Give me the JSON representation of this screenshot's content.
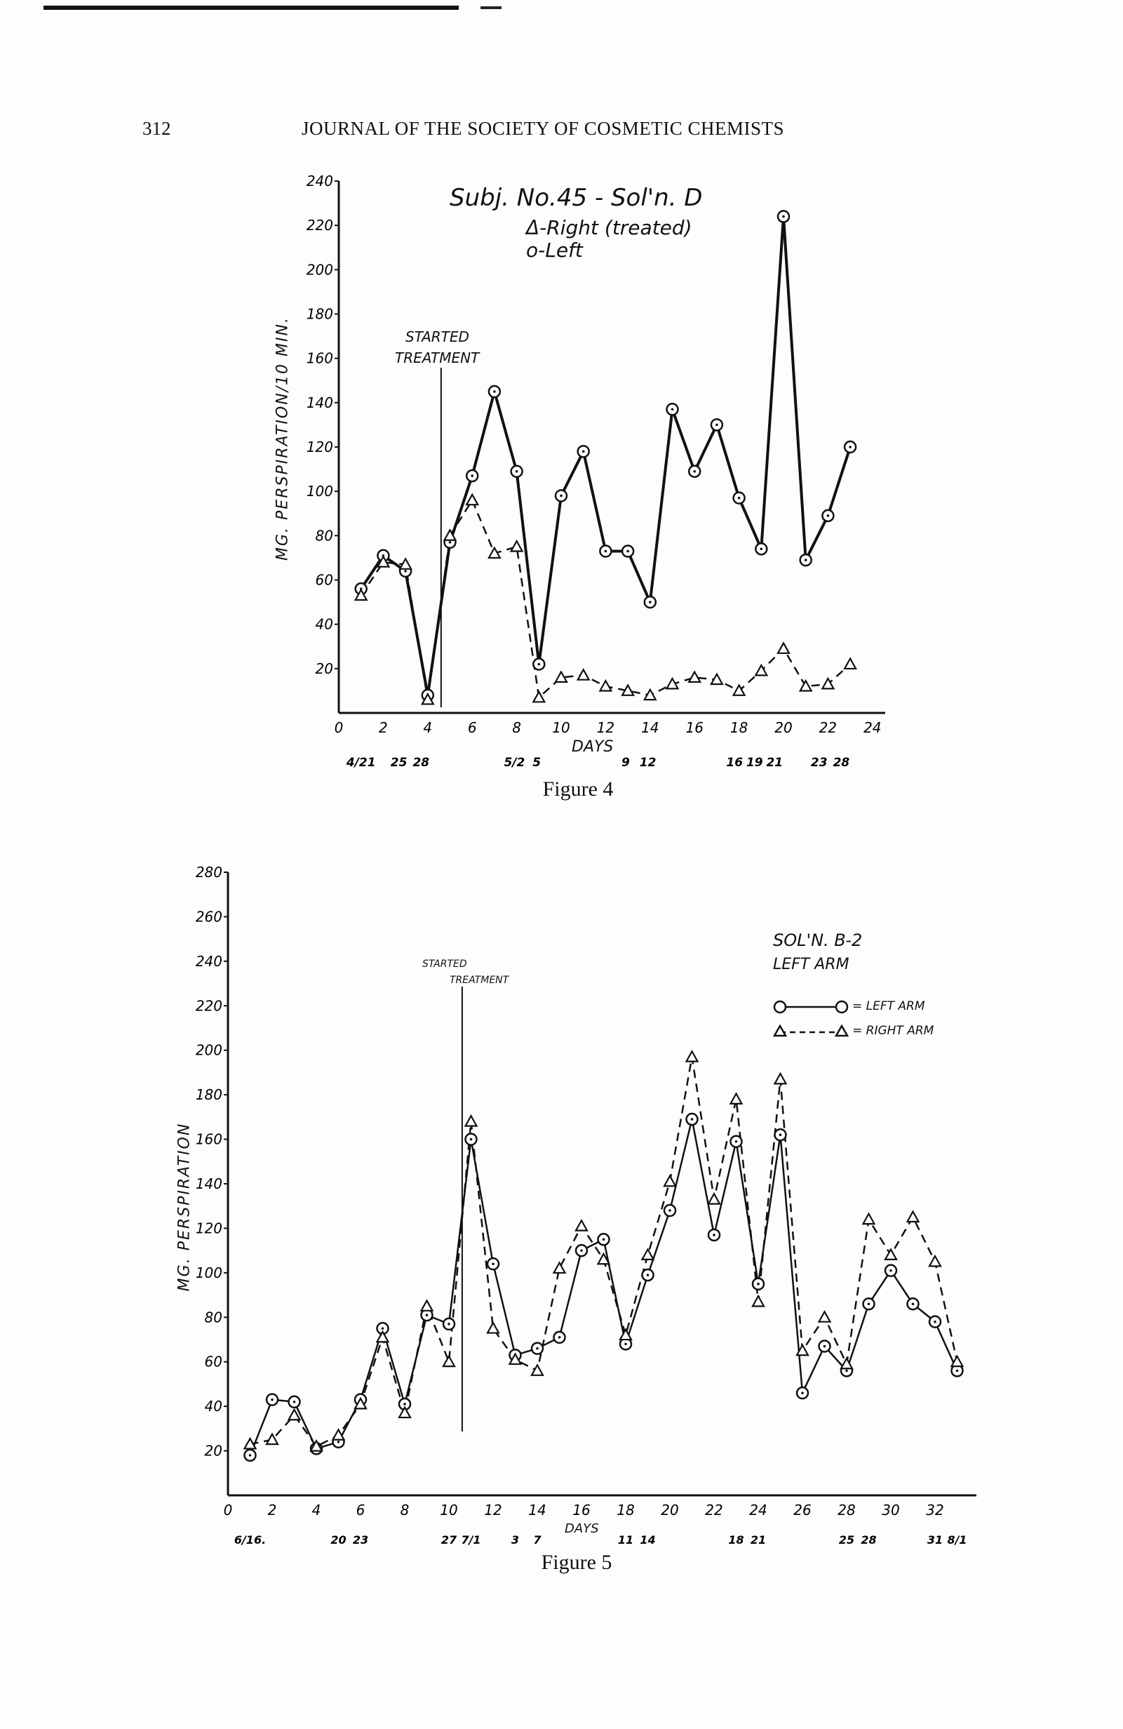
{
  "header": {
    "page_number": "312",
    "journal_title": "JOURNAL OF THE SOCIETY OF COSMETIC CHEMISTS"
  },
  "chart_data": [
    {
      "type": "line",
      "caption": "Figure 4",
      "title": "Subj. No.45 - Sol'n. D",
      "legend": [
        "Δ-Right (treated)",
        "o-Left"
      ],
      "legend_placement": "top-center",
      "xlabel": "DAYS",
      "ylabel": "MG. PERSPIRATION/10 MIN.",
      "xlim": [
        0,
        24
      ],
      "ylim": [
        0,
        240
      ],
      "x_ticks": [
        "0",
        "2",
        "4",
        "6",
        "8",
        "10",
        "12",
        "14",
        "16",
        "18",
        "20",
        "22",
        "24"
      ],
      "y_ticks": [
        "20",
        "40",
        "60",
        "80",
        "100",
        "120",
        "140",
        "160",
        "180",
        "200",
        "220",
        "240"
      ],
      "grid": false,
      "annotation": {
        "text_line1": "STARTED",
        "text_line2": "TREATMENT",
        "day": 4.6
      },
      "date_labels": [
        {
          "day": 1,
          "text": "4/21"
        },
        {
          "day": 2.7,
          "text": "25"
        },
        {
          "day": 3.7,
          "text": "28"
        },
        {
          "day": 7.9,
          "text": "5/2"
        },
        {
          "day": 8.9,
          "text": "5"
        },
        {
          "day": 12.9,
          "text": "9"
        },
        {
          "day": 13.9,
          "text": "12"
        },
        {
          "day": 17.8,
          "text": "16"
        },
        {
          "day": 18.7,
          "text": "19"
        },
        {
          "day": 19.6,
          "text": "21"
        },
        {
          "day": 21.6,
          "text": "23"
        },
        {
          "day": 22.6,
          "text": "28"
        }
      ],
      "x": [
        1,
        2,
        3,
        4,
        5,
        6,
        7,
        8,
        9,
        10,
        11,
        12,
        13,
        14,
        15,
        16,
        17,
        18,
        19,
        20,
        21,
        22,
        23
      ],
      "series": [
        {
          "name": "Left",
          "marker": "circle",
          "style": "solid-bold",
          "values": [
            56,
            71,
            64,
            8,
            77,
            107,
            145,
            109,
            22,
            98,
            118,
            73,
            73,
            50,
            137,
            109,
            130,
            97,
            74,
            224,
            69,
            89,
            120
          ]
        },
        {
          "name": "Right (treated)",
          "marker": "triangle",
          "style": "dashed",
          "values": [
            53,
            68,
            67,
            6,
            80,
            96,
            72,
            75,
            7,
            16,
            17,
            12,
            10,
            8,
            13,
            16,
            15,
            10,
            19,
            29,
            12,
            13,
            22
          ]
        }
      ]
    },
    {
      "type": "line",
      "caption": "Figure 5",
      "title": "SOL'N. B-2",
      "subtitle": "LEFT ARM",
      "legend": [
        "= LEFT ARM",
        "= RIGHT ARM"
      ],
      "legend_placement": "top-right",
      "xlabel": "DAYS",
      "ylabel": "MG. PERSPIRATION",
      "xlim": [
        0,
        34
      ],
      "ylim": [
        0,
        280
      ],
      "x_ticks": [
        "0",
        "2",
        "4",
        "6",
        "8",
        "10",
        "12",
        "14",
        "16",
        "18",
        "20",
        "22",
        "24",
        "26",
        "28",
        "30",
        "32"
      ],
      "y_ticks": [
        "20",
        "40",
        "60",
        "80",
        "100",
        "120",
        "140",
        "160",
        "180",
        "200",
        "220",
        "240",
        "260",
        "280"
      ],
      "grid": false,
      "annotation": {
        "text_line1": "STARTED",
        "text_line2": "TREATMENT",
        "day": 10.6
      },
      "date_labels": [
        {
          "day": 1,
          "text": "6/16."
        },
        {
          "day": 5,
          "text": "20"
        },
        {
          "day": 6,
          "text": "23"
        },
        {
          "day": 10,
          "text": "27"
        },
        {
          "day": 11,
          "text": "7/1"
        },
        {
          "day": 13,
          "text": "3"
        },
        {
          "day": 14,
          "text": "7"
        },
        {
          "day": 18,
          "text": "11"
        },
        {
          "day": 19,
          "text": "14"
        },
        {
          "day": 23,
          "text": "18"
        },
        {
          "day": 24,
          "text": "21"
        },
        {
          "day": 28,
          "text": "25"
        },
        {
          "day": 29,
          "text": "28"
        },
        {
          "day": 32,
          "text": "31"
        },
        {
          "day": 33,
          "text": "8/1"
        }
      ],
      "x": [
        1,
        2,
        3,
        4,
        5,
        6,
        7,
        8,
        9,
        10,
        11,
        12,
        13,
        14,
        15,
        16,
        17,
        18,
        19,
        20,
        21,
        22,
        23,
        24,
        25,
        26,
        27,
        28,
        29,
        30,
        31,
        32,
        33
      ],
      "series": [
        {
          "name": "Left arm",
          "marker": "circle",
          "style": "solid",
          "values": [
            18,
            43,
            42,
            21,
            24,
            43,
            75,
            41,
            81,
            77,
            160,
            104,
            63,
            66,
            71,
            110,
            115,
            68,
            99,
            128,
            169,
            117,
            159,
            95,
            162,
            46,
            67,
            56,
            86,
            101,
            86,
            78,
            56
          ]
        },
        {
          "name": "Right arm",
          "marker": "triangle",
          "style": "dashed",
          "values": [
            23,
            25,
            36,
            22,
            27,
            41,
            71,
            37,
            85,
            60,
            168,
            75,
            61,
            56,
            102,
            121,
            106,
            72,
            108,
            141,
            197,
            133,
            178,
            87,
            187,
            65,
            80,
            59,
            124,
            108,
            125,
            105,
            60
          ]
        }
      ]
    }
  ]
}
